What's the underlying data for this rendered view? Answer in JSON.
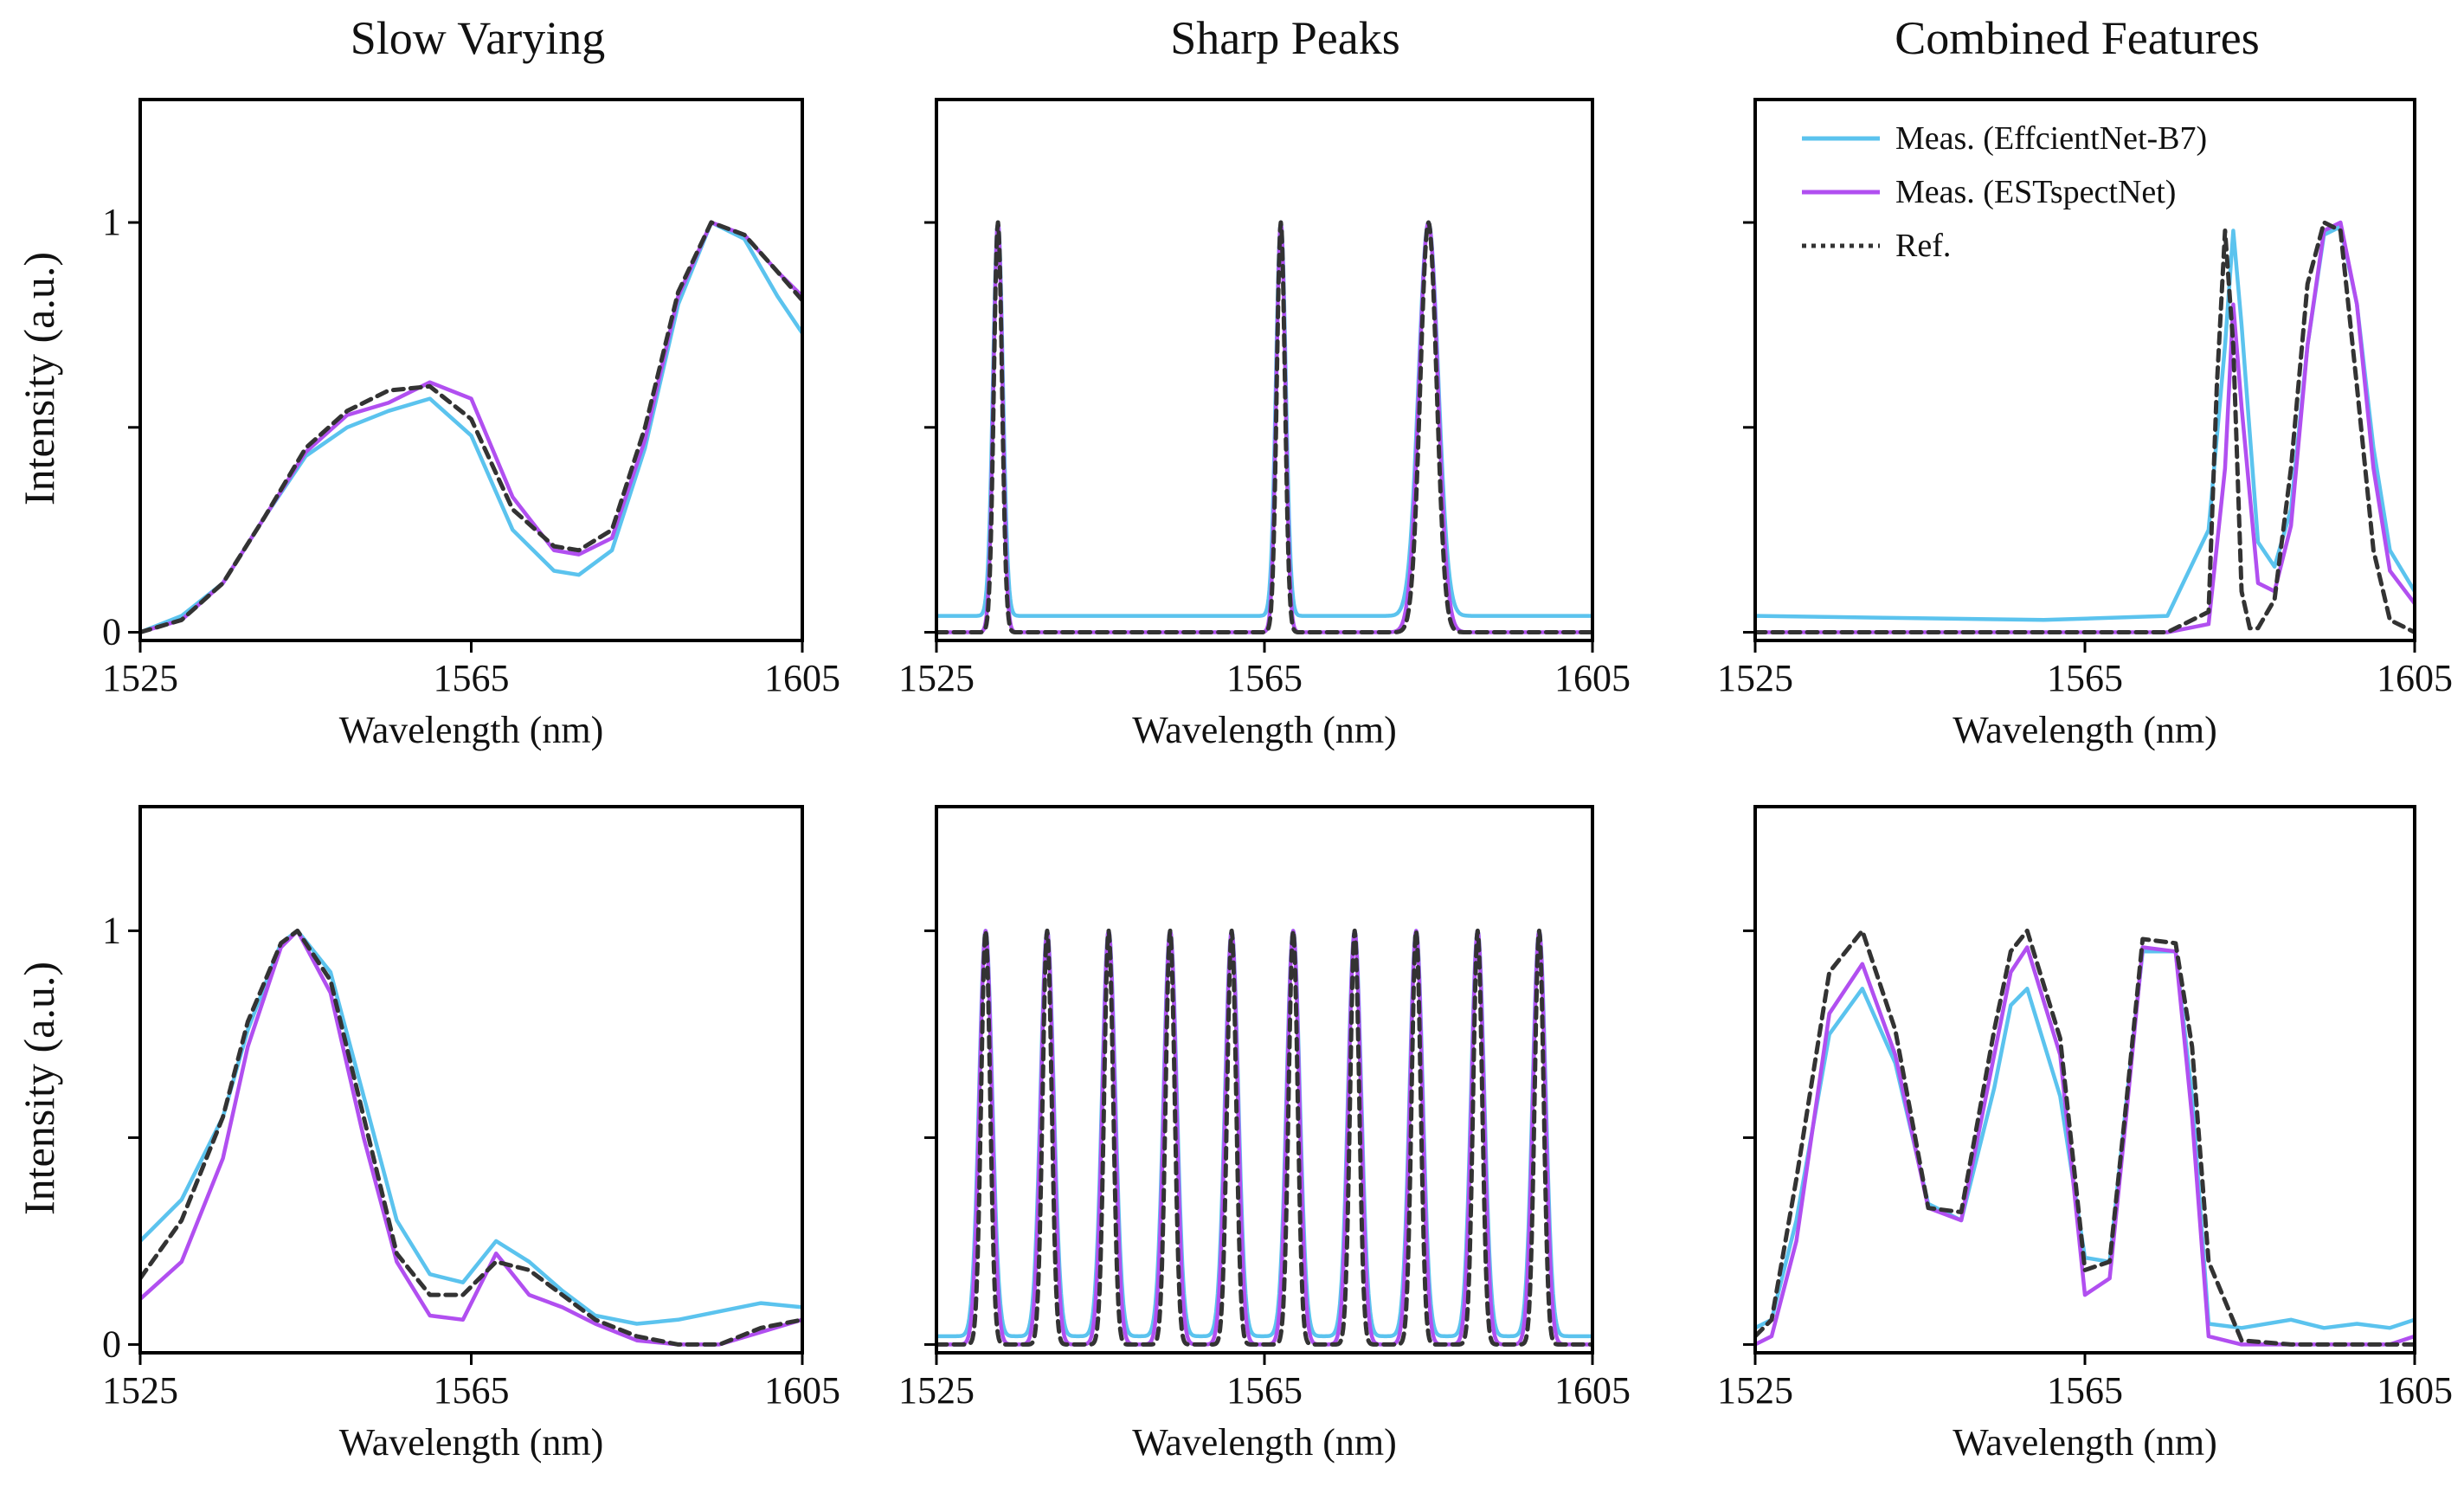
{
  "column_titles": [
    "Slow Varying",
    "Sharp Peaks",
    "Combined Features"
  ],
  "legend": {
    "entries": [
      {
        "label": "Meas. (EffcientNet-B7)",
        "color": "#5bc3ee",
        "style": "solid"
      },
      {
        "label": "Meas. (ESTspectNet)",
        "color": "#b14ff0",
        "style": "solid"
      },
      {
        "label": "Ref.",
        "color": "#333333",
        "style": "dashed"
      }
    ]
  },
  "colors": {
    "efficientnet": "#5bc3ee",
    "estspectnet": "#b14ff0",
    "reference": "#333333"
  },
  "chart_data": [
    {
      "type": "line",
      "row": 1,
      "column": 1,
      "title": "Slow Varying",
      "xlabel": "Wavelength (nm)",
      "ylabel": "Intensity (a.u.)",
      "xlim": [
        1525,
        1605
      ],
      "ylim": [
        -0.02,
        1.3
      ],
      "xticks": [
        "1525",
        "1565",
        "1605"
      ],
      "yticks": [
        "0",
        "1"
      ],
      "series": [
        {
          "name": "Meas. (EffcientNet-B7)",
          "x": [
            1525,
            1530,
            1535,
            1540,
            1545,
            1550,
            1555,
            1560,
            1565,
            1570,
            1575,
            1578,
            1582,
            1586,
            1590,
            1594,
            1598,
            1602,
            1605
          ],
          "y": [
            0.0,
            0.04,
            0.12,
            0.28,
            0.43,
            0.5,
            0.54,
            0.57,
            0.48,
            0.25,
            0.15,
            0.14,
            0.2,
            0.45,
            0.8,
            1.0,
            0.96,
            0.82,
            0.73
          ]
        },
        {
          "name": "Meas. (ESTspectNet)",
          "x": [
            1525,
            1530,
            1535,
            1540,
            1545,
            1550,
            1555,
            1560,
            1565,
            1570,
            1575,
            1578,
            1582,
            1586,
            1590,
            1594,
            1598,
            1602,
            1605
          ],
          "y": [
            0.0,
            0.03,
            0.12,
            0.28,
            0.44,
            0.53,
            0.56,
            0.61,
            0.57,
            0.33,
            0.2,
            0.19,
            0.23,
            0.47,
            0.82,
            1.0,
            0.97,
            0.88,
            0.82
          ]
        },
        {
          "name": "Ref.",
          "x": [
            1525,
            1530,
            1535,
            1540,
            1545,
            1550,
            1555,
            1560,
            1565,
            1570,
            1575,
            1578,
            1582,
            1586,
            1590,
            1594,
            1598,
            1602,
            1605
          ],
          "y": [
            0.0,
            0.03,
            0.12,
            0.28,
            0.45,
            0.54,
            0.59,
            0.6,
            0.52,
            0.3,
            0.21,
            0.2,
            0.25,
            0.5,
            0.83,
            1.0,
            0.97,
            0.88,
            0.81
          ]
        }
      ]
    },
    {
      "type": "line",
      "row": 1,
      "column": 2,
      "title": "Sharp Peaks",
      "xlabel": "Wavelength (nm)",
      "ylabel": "",
      "xlim": [
        1525,
        1605
      ],
      "ylim": [
        -0.02,
        1.3
      ],
      "xticks": [
        "1525",
        "1565",
        "1605"
      ],
      "yticks": [],
      "peaks": [
        1532.5,
        1567,
        1585
      ],
      "series": [
        {
          "name": "Meas. (EffcientNet-B7)",
          "baseline": 0.04,
          "widths": [
            0.6,
            0.6,
            1.2
          ]
        },
        {
          "name": "Meas. (ESTspectNet)",
          "baseline": 0.0,
          "widths": [
            0.55,
            0.55,
            1.15
          ]
        },
        {
          "name": "Ref.",
          "baseline": 0.0,
          "widths": [
            0.5,
            0.5,
            1.0
          ]
        }
      ]
    },
    {
      "type": "line",
      "row": 1,
      "column": 3,
      "title": "Combined Features",
      "xlabel": "Wavelength (nm)",
      "ylabel": "",
      "xlim": [
        1525,
        1605
      ],
      "ylim": [
        -0.02,
        1.3
      ],
      "xticks": [
        "1525",
        "1565",
        "1605"
      ],
      "yticks": [],
      "series": [
        {
          "name": "Meas. (EffcientNet-B7)",
          "x": [
            1525,
            1560,
            1575,
            1580,
            1582,
            1583,
            1584,
            1586,
            1588,
            1590,
            1592,
            1594,
            1596,
            1598,
            1600,
            1602,
            1605
          ],
          "y": [
            0.04,
            0.03,
            0.04,
            0.25,
            0.7,
            0.98,
            0.75,
            0.22,
            0.16,
            0.3,
            0.7,
            0.97,
            0.99,
            0.8,
            0.45,
            0.2,
            0.1
          ]
        },
        {
          "name": "Meas. (ESTspectNet)",
          "x": [
            1525,
            1560,
            1575,
            1580,
            1582,
            1583,
            1584,
            1586,
            1588,
            1590,
            1592,
            1594,
            1596,
            1598,
            1600,
            1602,
            1605
          ],
          "y": [
            0.0,
            0.0,
            0.0,
            0.02,
            0.4,
            0.8,
            0.55,
            0.12,
            0.1,
            0.26,
            0.7,
            0.98,
            1.0,
            0.8,
            0.4,
            0.15,
            0.07
          ]
        },
        {
          "name": "Ref.",
          "x": [
            1525,
            1560,
            1575,
            1580,
            1581,
            1582,
            1583,
            1584,
            1585,
            1586,
            1588,
            1590,
            1592,
            1594,
            1596,
            1598,
            1600,
            1602,
            1605
          ],
          "y": [
            0.0,
            0.0,
            0.0,
            0.05,
            0.6,
            0.98,
            0.7,
            0.1,
            0.01,
            0.01,
            0.08,
            0.4,
            0.85,
            1.0,
            0.98,
            0.6,
            0.2,
            0.03,
            0.0
          ]
        }
      ]
    },
    {
      "type": "line",
      "row": 2,
      "column": 1,
      "title": "",
      "xlabel": "Wavelength (nm)",
      "ylabel": "Intensity (a.u.)",
      "xlim": [
        1525,
        1605
      ],
      "ylim": [
        -0.02,
        1.3
      ],
      "xticks": [
        "1525",
        "1565",
        "1605"
      ],
      "yticks": [
        "0",
        "1"
      ],
      "series": [
        {
          "name": "Meas. (EffcientNet-B7)",
          "x": [
            1525,
            1530,
            1535,
            1538,
            1542,
            1544,
            1548,
            1552,
            1556,
            1560,
            1564,
            1568,
            1572,
            1576,
            1580,
            1585,
            1590,
            1595,
            1600,
            1605
          ],
          "y": [
            0.25,
            0.35,
            0.55,
            0.76,
            0.97,
            1.0,
            0.9,
            0.6,
            0.3,
            0.17,
            0.15,
            0.25,
            0.2,
            0.13,
            0.07,
            0.05,
            0.06,
            0.08,
            0.1,
            0.09
          ]
        },
        {
          "name": "Meas. (ESTspectNet)",
          "x": [
            1525,
            1530,
            1535,
            1538,
            1542,
            1544,
            1548,
            1552,
            1556,
            1560,
            1564,
            1568,
            1572,
            1576,
            1580,
            1585,
            1590,
            1595,
            1600,
            1605
          ],
          "y": [
            0.11,
            0.2,
            0.45,
            0.72,
            0.96,
            1.0,
            0.85,
            0.5,
            0.2,
            0.07,
            0.06,
            0.22,
            0.12,
            0.09,
            0.05,
            0.01,
            0.0,
            0.0,
            0.03,
            0.06
          ]
        },
        {
          "name": "Ref.",
          "x": [
            1525,
            1530,
            1535,
            1538,
            1542,
            1544,
            1548,
            1552,
            1556,
            1560,
            1564,
            1568,
            1572,
            1576,
            1580,
            1585,
            1590,
            1595,
            1600,
            1605
          ],
          "y": [
            0.16,
            0.3,
            0.55,
            0.78,
            0.97,
            1.0,
            0.88,
            0.55,
            0.22,
            0.12,
            0.12,
            0.2,
            0.18,
            0.12,
            0.06,
            0.02,
            0.0,
            0.0,
            0.04,
            0.06
          ]
        }
      ]
    },
    {
      "type": "line",
      "row": 2,
      "column": 2,
      "title": "",
      "xlabel": "Wavelength (nm)",
      "ylabel": "",
      "xlim": [
        1525,
        1605
      ],
      "ylim": [
        -0.02,
        1.3
      ],
      "xticks": [
        "1525",
        "1565",
        "1605"
      ],
      "yticks": [],
      "peaks": [
        1531,
        1538.5,
        1546,
        1553.5,
        1561,
        1568.5,
        1576,
        1583.5,
        1591,
        1598.5
      ],
      "series": [
        {
          "name": "Meas. (EffcientNet-B7)",
          "baseline": 0.02,
          "widths": [
            0.8,
            0.8,
            0.8,
            0.8,
            0.8,
            0.8,
            0.8,
            0.8,
            0.8,
            0.8
          ]
        },
        {
          "name": "Meas. (ESTspectNet)",
          "baseline": 0.0,
          "widths": [
            0.75,
            0.75,
            0.75,
            0.75,
            0.75,
            0.75,
            0.75,
            0.75,
            0.75,
            0.75
          ]
        },
        {
          "name": "Ref.",
          "baseline": 0.0,
          "widths": [
            0.55,
            0.55,
            0.55,
            0.55,
            0.55,
            0.55,
            0.55,
            0.55,
            0.55,
            0.55
          ]
        }
      ]
    },
    {
      "type": "line",
      "row": 2,
      "column": 3,
      "title": "",
      "xlabel": "Wavelength (nm)",
      "ylabel": "",
      "xlim": [
        1525,
        1605
      ],
      "ylim": [
        -0.02,
        1.3
      ],
      "xticks": [
        "1525",
        "1565",
        "1605"
      ],
      "yticks": [],
      "series": [
        {
          "name": "Meas. (EffcientNet-B7)",
          "x": [
            1525,
            1527,
            1530,
            1534,
            1538,
            1542,
            1546,
            1550,
            1554,
            1556,
            1558,
            1562,
            1565,
            1568,
            1570,
            1572,
            1576,
            1578,
            1580,
            1584,
            1590,
            1594,
            1598,
            1602,
            1605
          ],
          "y": [
            0.04,
            0.06,
            0.3,
            0.75,
            0.86,
            0.68,
            0.34,
            0.3,
            0.62,
            0.82,
            0.86,
            0.6,
            0.21,
            0.2,
            0.58,
            0.95,
            0.95,
            0.6,
            0.05,
            0.04,
            0.06,
            0.04,
            0.05,
            0.04,
            0.06
          ]
        },
        {
          "name": "Meas. (ESTspectNet)",
          "x": [
            1525,
            1527,
            1530,
            1534,
            1538,
            1542,
            1546,
            1550,
            1554,
            1556,
            1558,
            1562,
            1565,
            1568,
            1570,
            1572,
            1576,
            1578,
            1580,
            1584,
            1590,
            1594,
            1598,
            1602,
            1605
          ],
          "y": [
            0.0,
            0.02,
            0.25,
            0.8,
            0.92,
            0.7,
            0.33,
            0.3,
            0.7,
            0.9,
            0.96,
            0.7,
            0.12,
            0.16,
            0.55,
            0.96,
            0.95,
            0.55,
            0.02,
            0.0,
            0.0,
            0.0,
            0.0,
            0.0,
            0.02
          ]
        },
        {
          "name": "Ref.",
          "x": [
            1525,
            1527,
            1530,
            1534,
            1538,
            1542,
            1546,
            1550,
            1554,
            1556,
            1558,
            1562,
            1565,
            1568,
            1570,
            1572,
            1576,
            1578,
            1580,
            1584,
            1590,
            1594,
            1598,
            1602,
            1605
          ],
          "y": [
            0.02,
            0.06,
            0.4,
            0.9,
            1.0,
            0.76,
            0.33,
            0.32,
            0.76,
            0.95,
            1.0,
            0.74,
            0.18,
            0.2,
            0.58,
            0.98,
            0.97,
            0.72,
            0.2,
            0.01,
            0.0,
            0.0,
            0.0,
            0.0,
            0.0
          ]
        }
      ]
    }
  ]
}
